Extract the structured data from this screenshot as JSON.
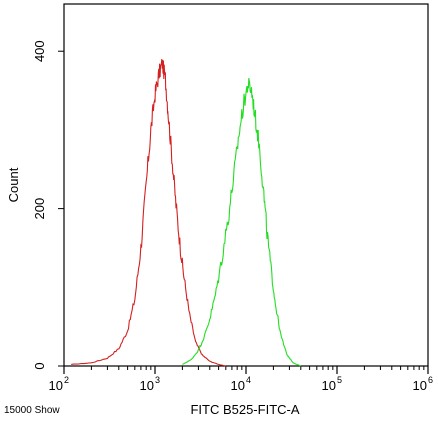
{
  "chart_data": {
    "type": "line",
    "title": "",
    "xlabel": "FITC B525-FITC-A",
    "ylabel": "Count",
    "x_scale": "log",
    "xlim": [
      100,
      1000000
    ],
    "ylim": [
      0,
      460
    ],
    "grid": false,
    "legend": "none",
    "x_ticks": [
      {
        "base": "10",
        "exp": "2"
      },
      {
        "base": "10",
        "exp": "3"
      },
      {
        "base": "10",
        "exp": "4"
      },
      {
        "base": "10",
        "exp": "5"
      },
      {
        "base": "10",
        "exp": "6"
      }
    ],
    "y_ticks": [
      "0",
      "200",
      "400"
    ],
    "y_tick_values": [
      0,
      200,
      400
    ],
    "series": [
      {
        "color": "#d42020",
        "x": [
          120,
          200,
          300,
          400,
          500,
          600,
          700,
          800,
          900,
          1000,
          1100,
          1200,
          1300,
          1400,
          1550,
          1700,
          1900,
          2100,
          2400,
          2800,
          3300,
          4000,
          5000,
          6000
        ],
        "y": [
          2,
          4,
          10,
          22,
          45,
          85,
          150,
          230,
          300,
          345,
          370,
          385,
          365,
          320,
          260,
          205,
          150,
          110,
          65,
          30,
          14,
          6,
          2,
          0
        ]
      },
      {
        "color": "#22dd22",
        "x": [
          2000,
          2500,
          3000,
          3500,
          4000,
          4700,
          5500,
          6500,
          7500,
          8500,
          9500,
          10500,
          11500,
          12500,
          14000,
          15500,
          17000,
          19000,
          21000,
          24000,
          28000,
          33000,
          40000
        ],
        "y": [
          2,
          8,
          20,
          38,
          60,
          95,
          140,
          195,
          250,
          300,
          335,
          358,
          350,
          320,
          280,
          225,
          170,
          120,
          80,
          40,
          15,
          4,
          0
        ]
      }
    ],
    "annotations": [
      "15000 Show"
    ]
  }
}
